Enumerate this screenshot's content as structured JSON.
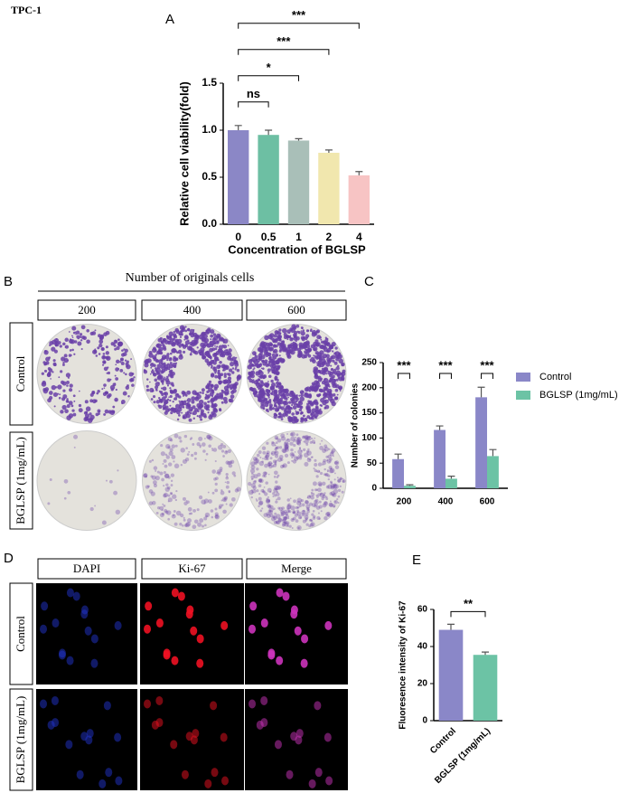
{
  "figure_label": "TPC-1",
  "panel_B": {
    "label": "B",
    "header": "Number of originals cells",
    "columns": [
      "200",
      "400",
      "600"
    ],
    "rows": [
      "Control",
      "BGLSP (1mg/mL)"
    ]
  },
  "panel_D": {
    "label": "D",
    "columns": [
      "DAPI",
      "Ki-67",
      "Merge"
    ],
    "rows": [
      "Control",
      "BGLSP (1mg/mL)"
    ]
  },
  "chart_data": [
    {
      "type": "bar",
      "panel": "A",
      "xlabel": "Concentration of BGLSP",
      "ylabel": "Relative cell viability(fold)",
      "categories": [
        "0",
        "0.5",
        "1",
        "2",
        "4"
      ],
      "values": [
        1.0,
        0.95,
        0.89,
        0.76,
        0.52
      ],
      "errors": [
        0.05,
        0.05,
        0.02,
        0.03,
        0.04
      ],
      "colors": [
        "#8b87c6",
        "#6dbfa3",
        "#a9bfb8",
        "#f1e7ae",
        "#f7c4c4"
      ],
      "ylim": [
        0,
        1.5
      ],
      "yticks": [
        {
          "value": 0,
          "label": "0.0"
        },
        0.5,
        {
          "value": 1,
          "label": "1.0"
        },
        1.5
      ],
      "annotations": [
        {
          "text": "ns",
          "between": [
            "0",
            "0.5"
          ]
        },
        {
          "text": "*",
          "between": [
            "0",
            "1"
          ]
        },
        {
          "text": "***",
          "between": [
            "0",
            "2"
          ]
        },
        {
          "text": "***",
          "between": [
            "0",
            "4"
          ]
        }
      ]
    },
    {
      "type": "grouped-bar",
      "panel": "C",
      "ylabel": "Number of colonies",
      "categories": [
        "200",
        "400",
        "600"
      ],
      "series": [
        {
          "name": "Control",
          "color": "#8a87c8",
          "values": [
            58,
            116,
            181
          ],
          "errors": [
            10,
            8,
            20
          ]
        },
        {
          "name": "BGLSP (1mg/mL)",
          "color": "#6cc3a5",
          "values": [
            5,
            19,
            64
          ],
          "errors": [
            2,
            5,
            13
          ]
        }
      ],
      "ylim": [
        0,
        250
      ],
      "yticks": [
        0,
        50,
        100,
        150,
        200,
        250
      ],
      "annotations": [
        {
          "text": "***",
          "category": "200"
        },
        {
          "text": "***",
          "category": "400"
        },
        {
          "text": "***",
          "category": "600"
        }
      ]
    },
    {
      "type": "bar",
      "panel": "E",
      "ylabel": "Fluoresence intensity of Ki-67",
      "categories": [
        "Control",
        "BGLSP (1mg/mL)"
      ],
      "values": [
        49,
        35.5
      ],
      "errors": [
        3,
        1.5
      ],
      "colors": [
        "#8a87c8",
        "#6cc3a5"
      ],
      "ylim": [
        0,
        60
      ],
      "yticks": [
        0,
        20,
        40,
        60
      ],
      "annotations": [
        {
          "text": "**",
          "between": [
            "Control",
            "BGLSP (1mg/mL)"
          ]
        }
      ]
    }
  ]
}
